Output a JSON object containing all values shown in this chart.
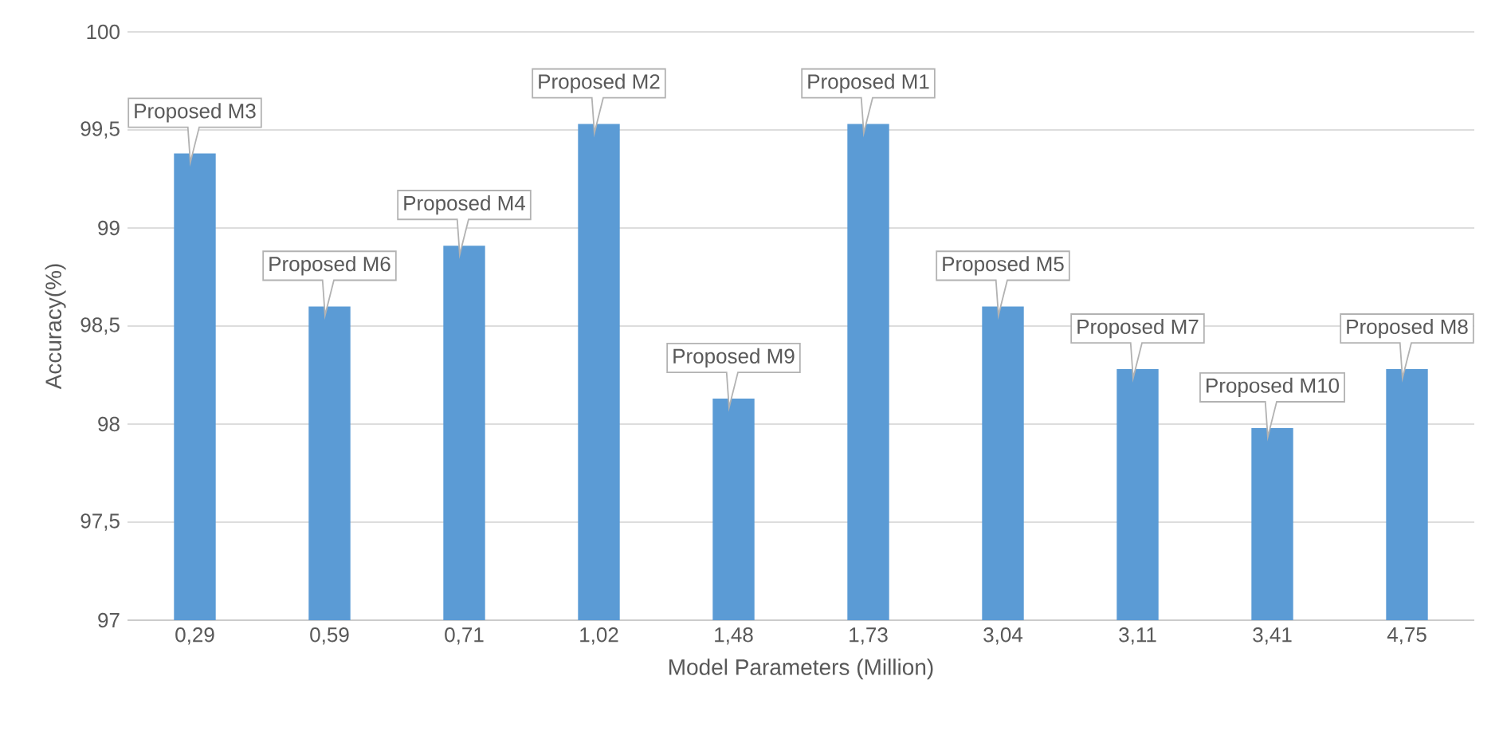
{
  "chart_data": {
    "type": "bar",
    "xlabel": "Model Parameters (Million)",
    "ylabel": "Accuracy(%)",
    "categories": [
      "0,29",
      "0,59",
      "0,71",
      "1,02",
      "1,48",
      "1,73",
      "3,04",
      "3,11",
      "3,41",
      "4,75"
    ],
    "values": [
      99.38,
      98.6,
      98.91,
      99.53,
      98.13,
      99.53,
      98.6,
      98.28,
      97.98,
      98.28
    ],
    "color": "#5b9bd5",
    "ylim": [
      97,
      100
    ],
    "yticks": [
      97,
      {
        "value": 97.5,
        "label": "97,5"
      },
      98,
      {
        "value": 98.5,
        "label": "98,5"
      },
      99,
      {
        "value": 99.5,
        "label": "99,5"
      },
      100
    ],
    "grid": "y",
    "annotations": [
      {
        "text": "Proposed M3",
        "x": "0,29",
        "y": 99.38
      },
      {
        "text": "Proposed M6",
        "x": "0,59",
        "y": 98.6
      },
      {
        "text": "Proposed M4",
        "x": "0,71",
        "y": 98.91
      },
      {
        "text": "Proposed M2",
        "x": "1,02",
        "y": 99.53
      },
      {
        "text": "Proposed M9",
        "x": "1,48",
        "y": 98.13
      },
      {
        "text": "Proposed M1",
        "x": "1,73",
        "y": 99.53
      },
      {
        "text": "Proposed M5",
        "x": "3,04",
        "y": 98.6
      },
      {
        "text": "Proposed M7",
        "x": "3,11",
        "y": 98.28
      },
      {
        "text": "Proposed M10",
        "x": "3,41",
        "y": 97.98
      },
      {
        "text": "Proposed M8",
        "x": "4,75",
        "y": 98.28
      }
    ]
  }
}
